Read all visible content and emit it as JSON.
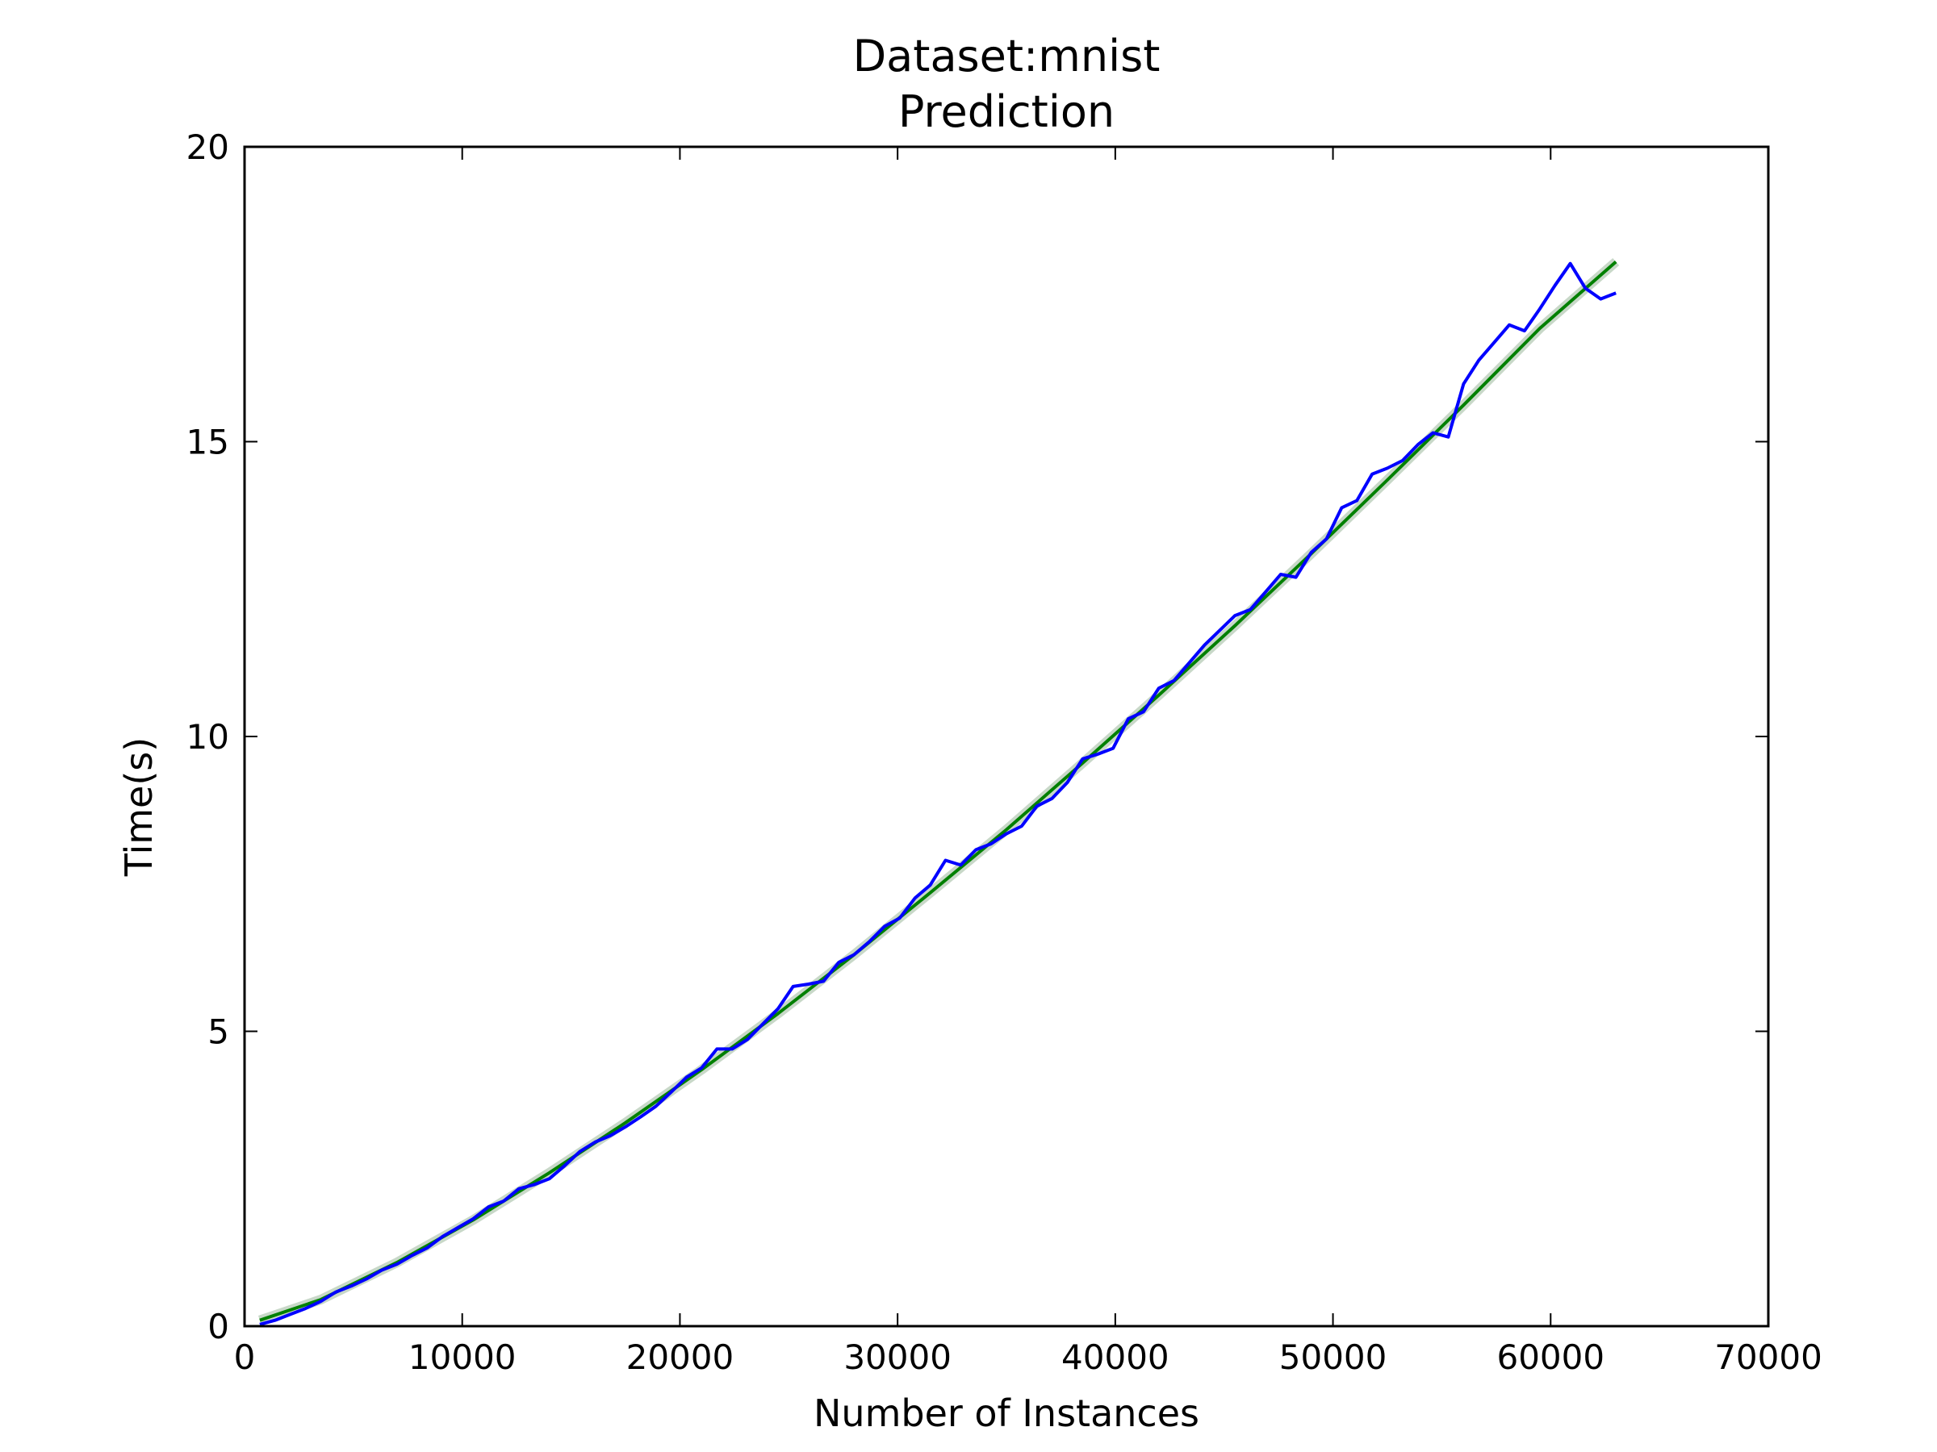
{
  "chart_data": {
    "type": "line",
    "title": "Dataset:mnist",
    "subtitle": "Prediction",
    "xlabel": "Number of Instances",
    "ylabel": "Time(s)",
    "xlim": [
      0,
      70000
    ],
    "ylim": [
      0,
      20
    ],
    "xticks": [
      "0",
      "10000",
      "20000",
      "30000",
      "40000",
      "50000",
      "60000",
      "70000"
    ],
    "yticks": [
      "0",
      "5",
      "10",
      "15",
      "20"
    ],
    "grid": false,
    "legend": "none",
    "colors": {
      "measured": "#0000ff",
      "fit": "#008000",
      "band": "#c8d8c8"
    },
    "series": [
      {
        "x": [
          700,
          1400,
          2100,
          2800,
          3500,
          4200,
          4900,
          5600,
          6300,
          7000,
          7700,
          8400,
          9100,
          9800,
          10500,
          11200,
          11900,
          12600,
          13300,
          14000,
          14700,
          15400,
          16100,
          16800,
          17500,
          18200,
          18900,
          19600,
          20300,
          21000,
          21700,
          22400,
          23100,
          23800,
          24500,
          25200,
          25900,
          26600,
          27300,
          28000,
          28700,
          29400,
          30100,
          30800,
          31500,
          32200,
          32900,
          33600,
          34300,
          35000,
          35700,
          36400,
          37100,
          37800,
          38500,
          39200,
          39900,
          40600,
          41300,
          42000,
          42700,
          43400,
          44100,
          44800,
          45500,
          46200,
          46900,
          47600,
          48300,
          49000,
          49700,
          50400,
          51100,
          51800,
          52500,
          53200,
          53900,
          54600,
          55300,
          56000,
          56700,
          57400,
          58100,
          58800,
          59500,
          60200,
          60900,
          61600,
          62300,
          63000
        ],
        "values": [
          0.03,
          0.1,
          0.2,
          0.3,
          0.42,
          0.58,
          0.68,
          0.8,
          0.95,
          1.05,
          1.2,
          1.33,
          1.52,
          1.67,
          1.82,
          2.02,
          2.12,
          2.33,
          2.4,
          2.5,
          2.72,
          2.96,
          3.12,
          3.23,
          3.38,
          3.55,
          3.73,
          3.97,
          4.22,
          4.38,
          4.7,
          4.7,
          4.86,
          5.12,
          5.38,
          5.76,
          5.8,
          5.85,
          6.17,
          6.3,
          6.52,
          6.78,
          6.92,
          7.26,
          7.48,
          7.9,
          7.82,
          8.08,
          8.18,
          8.35,
          8.48,
          8.82,
          8.95,
          9.22,
          9.62,
          9.7,
          9.8,
          10.3,
          10.42,
          10.82,
          10.95,
          11.25,
          11.55,
          11.8,
          12.05,
          12.15,
          12.45,
          12.75,
          12.7,
          13.12,
          13.35,
          13.88,
          14.0,
          14.45,
          14.55,
          14.68,
          14.95,
          15.15,
          15.08,
          15.98,
          16.38,
          16.68,
          16.98,
          16.88,
          17.25,
          17.65,
          18.02,
          17.6,
          17.42,
          17.52
        ]
      },
      {
        "x": [
          700,
          3500,
          7000,
          10500,
          14000,
          17500,
          21000,
          24500,
          28000,
          31500,
          35000,
          38500,
          42000,
          45500,
          49000,
          52500,
          56000,
          59500,
          63000
        ],
        "values": [
          0.1,
          0.45,
          1.08,
          1.8,
          2.6,
          3.45,
          4.35,
          5.3,
          6.3,
          7.35,
          8.42,
          9.55,
          10.7,
          11.88,
          13.1,
          14.35,
          15.62,
          16.92,
          18.05
        ]
      }
    ]
  }
}
